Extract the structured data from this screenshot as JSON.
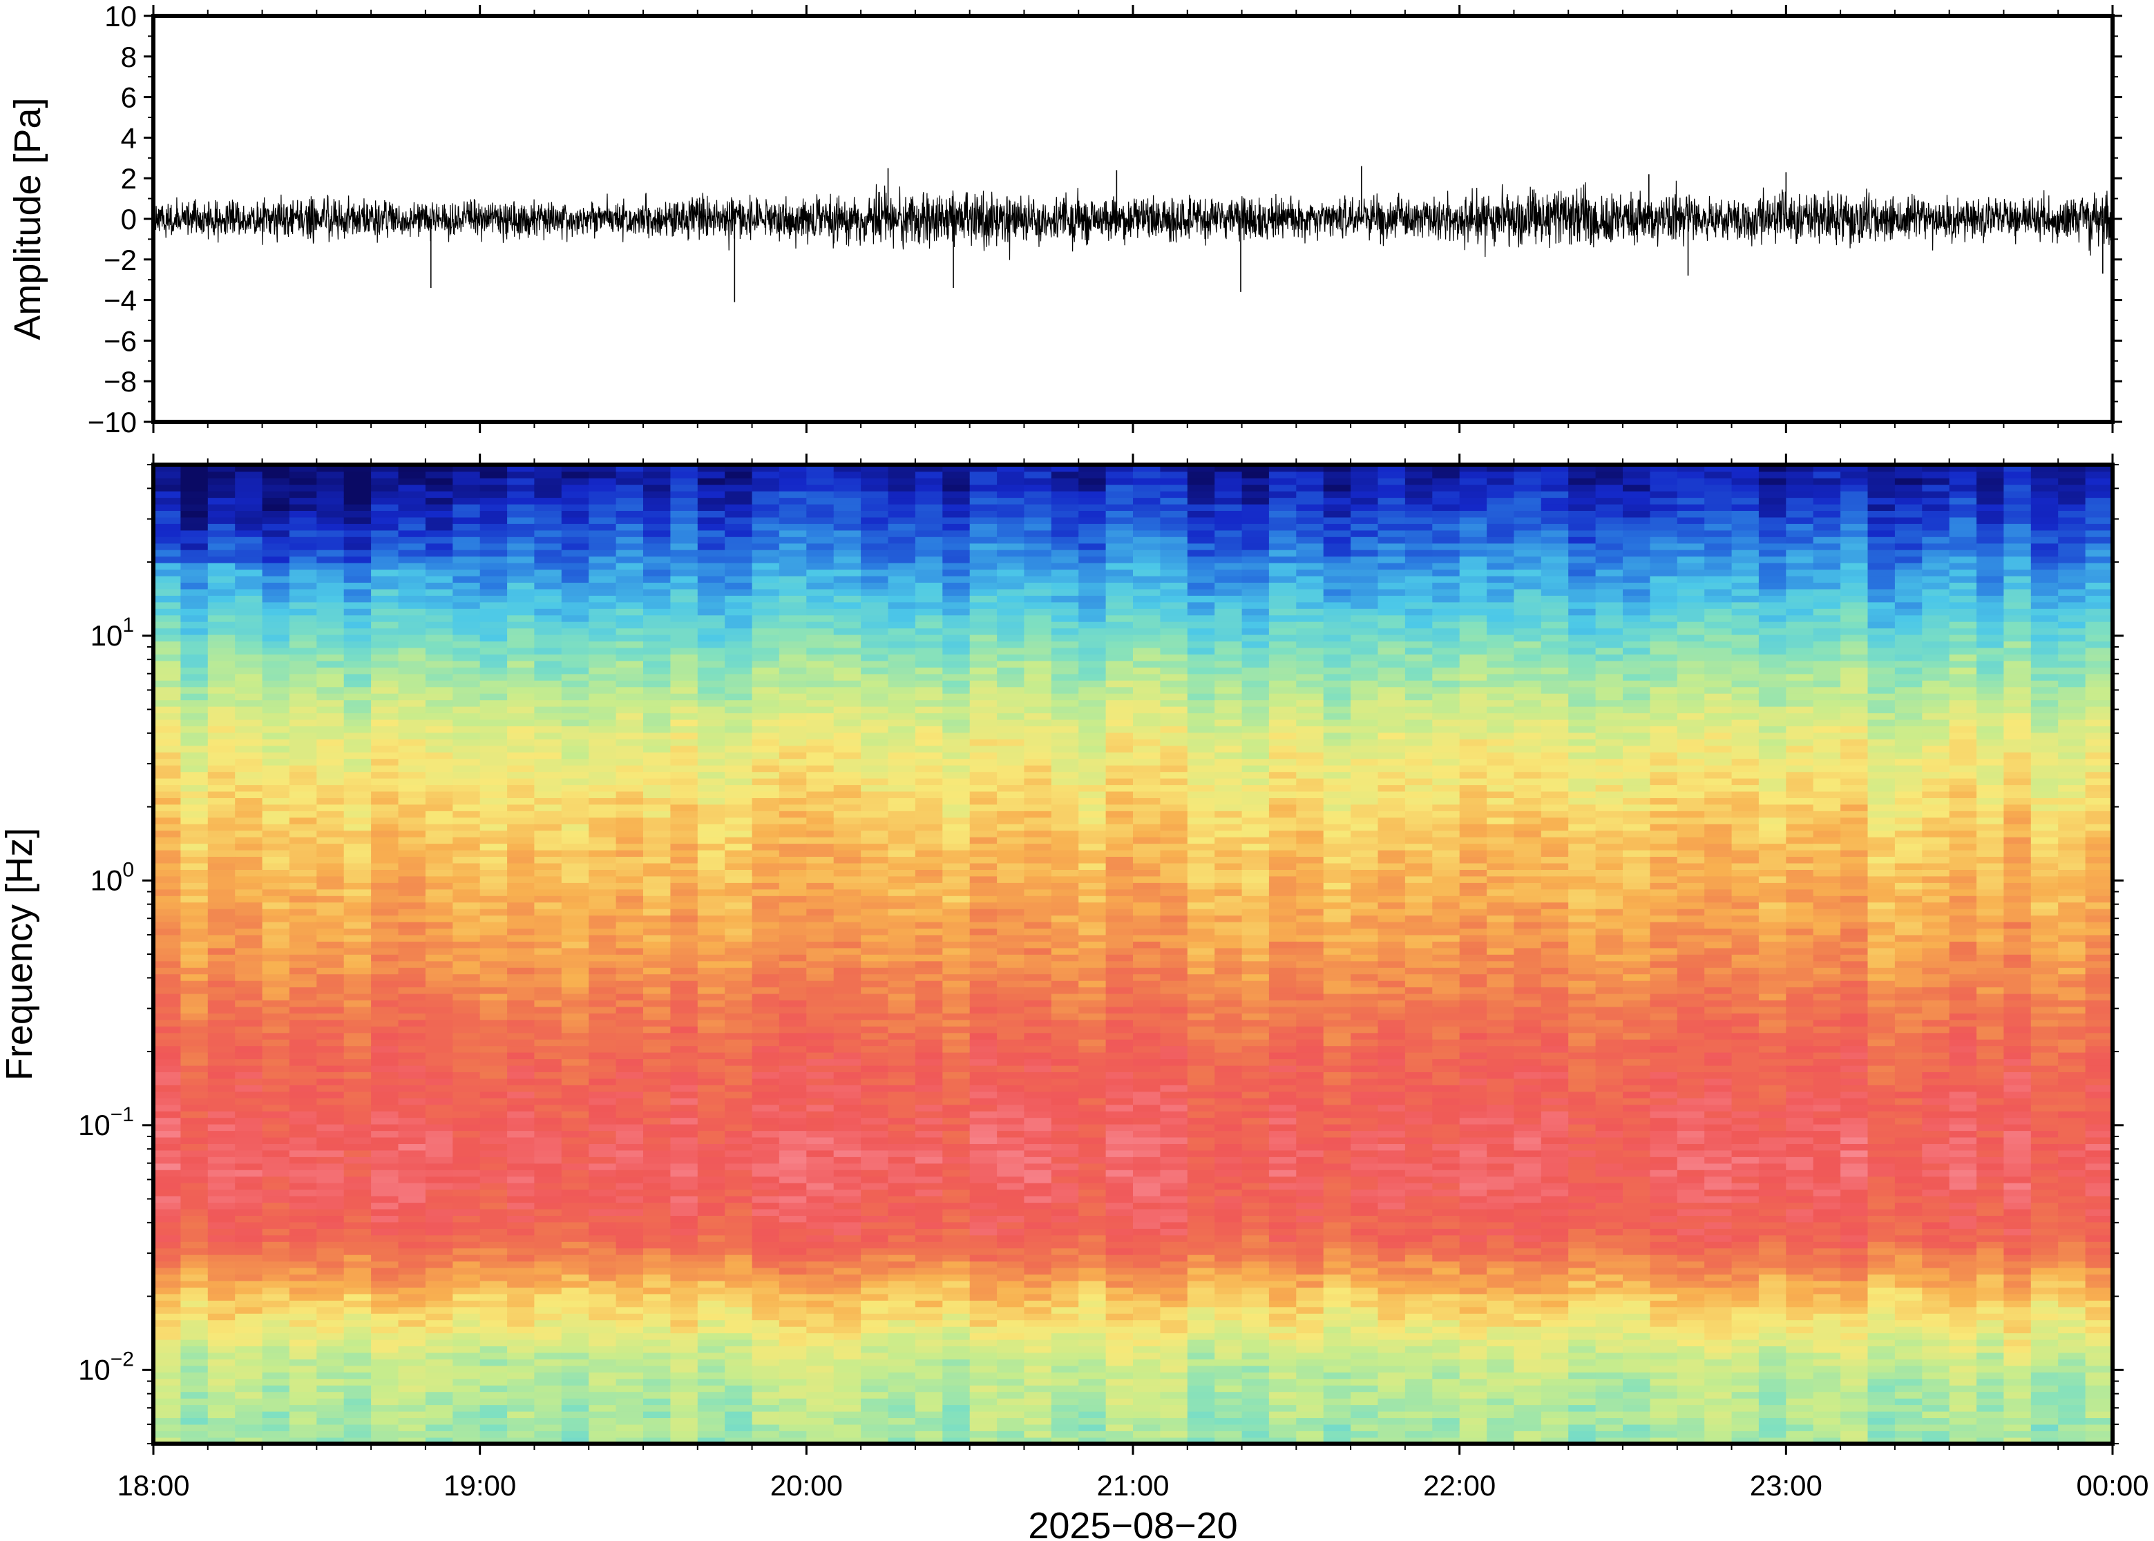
{
  "chart_data": [
    {
      "type": "line",
      "panel": "waveform",
      "ylabel": "Amplitude [Pa]",
      "ylim": [
        -10,
        10
      ],
      "yticks": [
        -10,
        -8,
        -6,
        -4,
        -2,
        0,
        2,
        4,
        6,
        8,
        10
      ],
      "ytick_labels": [
        "−10",
        "−8",
        "−6",
        "−4",
        "−2",
        "0",
        "2",
        "4",
        "6",
        "8",
        "10"
      ],
      "xlim_hours": [
        18,
        24
      ],
      "trace": {
        "typical_peak": 1.2,
        "max": 2.6,
        "min": -4.1,
        "envelope": [
          {
            "t": 18.0,
            "a": 0.9
          },
          {
            "t": 18.25,
            "a": 1.2
          },
          {
            "t": 18.5,
            "a": 1.3
          },
          {
            "t": 18.75,
            "a": 1.0
          },
          {
            "t": 19.0,
            "a": 1.0
          },
          {
            "t": 19.5,
            "a": 1.1
          },
          {
            "t": 19.75,
            "a": 1.3
          },
          {
            "t": 20.0,
            "a": 1.2
          },
          {
            "t": 20.25,
            "a": 1.6
          },
          {
            "t": 20.5,
            "a": 1.7
          },
          {
            "t": 20.75,
            "a": 1.4
          },
          {
            "t": 21.0,
            "a": 1.4
          },
          {
            "t": 21.25,
            "a": 1.3
          },
          {
            "t": 21.5,
            "a": 1.1
          },
          {
            "t": 21.75,
            "a": 1.2
          },
          {
            "t": 22.0,
            "a": 1.5
          },
          {
            "t": 22.25,
            "a": 1.6
          },
          {
            "t": 22.5,
            "a": 1.7
          },
          {
            "t": 22.75,
            "a": 1.4
          },
          {
            "t": 23.0,
            "a": 1.4
          },
          {
            "t": 23.25,
            "a": 1.5
          },
          {
            "t": 23.5,
            "a": 1.2
          },
          {
            "t": 23.75,
            "a": 1.2
          },
          {
            "t": 24.0,
            "a": 1.6
          }
        ],
        "spikes": [
          {
            "t": 18.85,
            "v": -3.4
          },
          {
            "t": 19.78,
            "v": -4.1
          },
          {
            "t": 20.25,
            "v": 2.5
          },
          {
            "t": 20.45,
            "v": -3.4
          },
          {
            "t": 20.95,
            "v": 2.4
          },
          {
            "t": 21.33,
            "v": -3.6
          },
          {
            "t": 21.7,
            "v": 2.6
          },
          {
            "t": 22.58,
            "v": 2.2
          },
          {
            "t": 22.7,
            "v": -2.8
          },
          {
            "t": 23.0,
            "v": 2.3
          },
          {
            "t": 23.97,
            "v": -2.7
          }
        ]
      }
    },
    {
      "type": "heatmap",
      "panel": "spectrogram",
      "ylabel": "Frequency [Hz]",
      "yscale": "log",
      "ylim": [
        0.005,
        50
      ],
      "yticks": [
        {
          "base": "10",
          "exp": "−2"
        },
        {
          "base": "10",
          "exp": "−1"
        },
        {
          "base": "10",
          "exp": "0"
        },
        {
          "base": "10",
          "exp": "1"
        }
      ],
      "xlim_hours": [
        18,
        24
      ],
      "colormap": [
        "#0a0a64",
        "#1428c8",
        "#2a7ae0",
        "#4cc8e8",
        "#80e0c0",
        "#c8ec8c",
        "#f8e878",
        "#f8b050",
        "#f07850",
        "#f05858",
        "#f88890"
      ],
      "spectrum_profile": [
        {
          "f": 50,
          "c": 0.05
        },
        {
          "f": 30,
          "c": 0.14
        },
        {
          "f": 15,
          "c": 0.28
        },
        {
          "f": 8,
          "c": 0.42
        },
        {
          "f": 4,
          "c": 0.55
        },
        {
          "f": 1.5,
          "c": 0.66
        },
        {
          "f": 0.5,
          "c": 0.74
        },
        {
          "f": 0.2,
          "c": 0.85
        },
        {
          "f": 0.07,
          "c": 0.92
        },
        {
          "f": 0.035,
          "c": 0.86
        },
        {
          "f": 0.02,
          "c": 0.66
        },
        {
          "f": 0.011,
          "c": 0.5
        },
        {
          "f": 0.005,
          "c": 0.44
        }
      ]
    }
  ],
  "xaxis": {
    "tick_labels": [
      "18:00",
      "19:00",
      "20:00",
      "21:00",
      "22:00",
      "23:00",
      "00:00"
    ],
    "date_label": "2025−08−20"
  }
}
